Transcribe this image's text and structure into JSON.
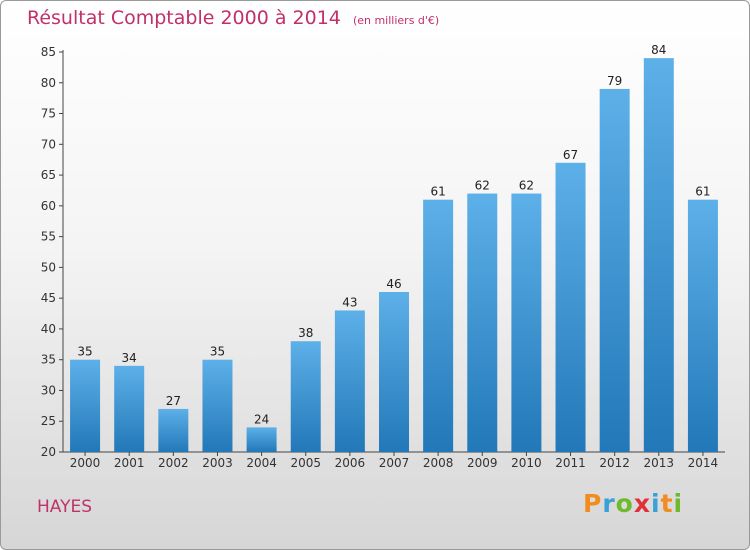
{
  "title": "Résultat Comptable 2000 à 2014",
  "subtitle": "(en milliers d'€)",
  "commune": "HAYES",
  "logo": {
    "text": "Proxiti",
    "letter_colors": [
      "#f28c1e",
      "#3aa0d8",
      "#6fba2c",
      "#e0303a",
      "#3aa0d8",
      "#f28c1e",
      "#6fba2c"
    ]
  },
  "colors": {
    "title": "#c0306a",
    "bar_top": "#5db0e8",
    "bar_bottom": "#2278b8"
  },
  "chart_data": {
    "type": "bar",
    "title": "Résultat Comptable 2000 à 2014",
    "subtitle": "(en milliers d'€)",
    "categories": [
      "2000",
      "2001",
      "2002",
      "2003",
      "2004",
      "2005",
      "2006",
      "2007",
      "2008",
      "2009",
      "2010",
      "2011",
      "2012",
      "2013",
      "2014"
    ],
    "values": [
      35,
      34,
      27,
      35,
      24,
      38,
      43,
      46,
      61,
      62,
      62,
      67,
      79,
      84,
      61
    ],
    "ylim": [
      20,
      85
    ],
    "yticks": [
      20,
      25,
      30,
      35,
      40,
      45,
      50,
      55,
      60,
      65,
      70,
      75,
      80,
      85
    ],
    "grid": false,
    "data_labels": true
  }
}
